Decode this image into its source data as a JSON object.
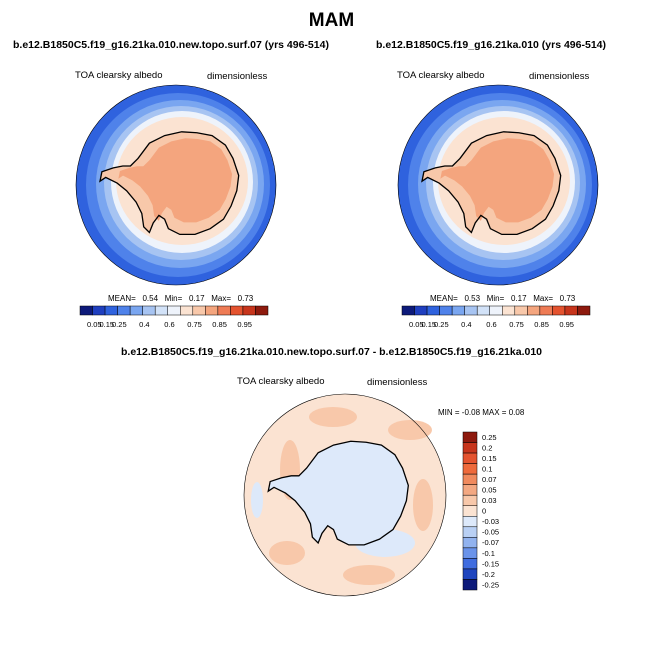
{
  "title": "MAM",
  "panels": [
    {
      "case": "b.e12.B1850C5.f19_g16.21ka.010.new.topo.surf.07 (yrs 496-514)",
      "variable": "TOA clearsky albedo",
      "units": "dimensionless",
      "stats": {
        "mean_label": "MEAN=",
        "mean": "0.54",
        "min_label": "Min=",
        "min": "0.17",
        "max_label": "Max=",
        "max": "0.73"
      }
    },
    {
      "case": "b.e12.B1850C5.f19_g16.21ka.010 (yrs 496-514)",
      "variable": "TOA clearsky albedo",
      "units": "dimensionless",
      "stats": {
        "mean_label": "MEAN=",
        "mean": "0.53",
        "min_label": "Min=",
        "min": "0.17",
        "max_label": "Max=",
        "max": "0.73"
      }
    }
  ],
  "diff_panel": {
    "title": "b.e12.B1850C5.f19_g16.21ka.010.new.topo.surf.07 - b.e12.B1850C5.f19_g16.21ka.010",
    "variable": "TOA clearsky albedo",
    "units": "dimensionless",
    "minmax": "MIN =  -0.08 MAX =   0.08"
  },
  "chart_data": [
    {
      "type": "heatmap",
      "projection": "polar stereographic (south pole)",
      "field": "TOA clearsky albedo",
      "mean": 0.54,
      "min": 0.17,
      "max": 0.73,
      "colorbar_ticks": [
        "0.05",
        "0.15",
        "0.25",
        "0.4",
        "0.6",
        "0.75",
        "0.85",
        "0.95"
      ]
    },
    {
      "type": "heatmap",
      "projection": "polar stereographic (south pole)",
      "field": "TOA clearsky albedo",
      "mean": 0.53,
      "min": 0.17,
      "max": 0.73,
      "colorbar_ticks": [
        "0.05",
        "0.15",
        "0.25",
        "0.4",
        "0.6",
        "0.75",
        "0.85",
        "0.95"
      ]
    },
    {
      "type": "heatmap",
      "projection": "polar stereographic (south pole)",
      "field": "TOA clearsky albedo difference",
      "min": -0.08,
      "max": 0.08,
      "colorbar_ticks": [
        "0.25",
        "0.2",
        "0.15",
        "0.1",
        "0.07",
        "0.05",
        "0.03",
        "0",
        "-0.03",
        "-0.05",
        "-0.07",
        "-0.1",
        "-0.15",
        "-0.2",
        "-0.25"
      ]
    }
  ],
  "colors": {
    "abs_scale": [
      "#0d1a7a",
      "#1f3fbf",
      "#2f62de",
      "#4f82ea",
      "#7aa6f0",
      "#a7c4f2",
      "#d2e2f8",
      "#eef3fb",
      "#fbe3d2",
      "#f8c8aa",
      "#f4a57e",
      "#ee7b55",
      "#e4532f",
      "#c7351c",
      "#8e1a0e"
    ],
    "diff_scale": [
      "#8e1a0e",
      "#c7351c",
      "#e4532f",
      "#ee6a3c",
      "#f08a5e",
      "#f3a882",
      "#f8c8aa",
      "#fbe3d2",
      "#dde9fa",
      "#b9d0f4",
      "#92b3ef",
      "#6a93ea",
      "#3f6cdf",
      "#1e45bf",
      "#0d1a7a"
    ]
  }
}
